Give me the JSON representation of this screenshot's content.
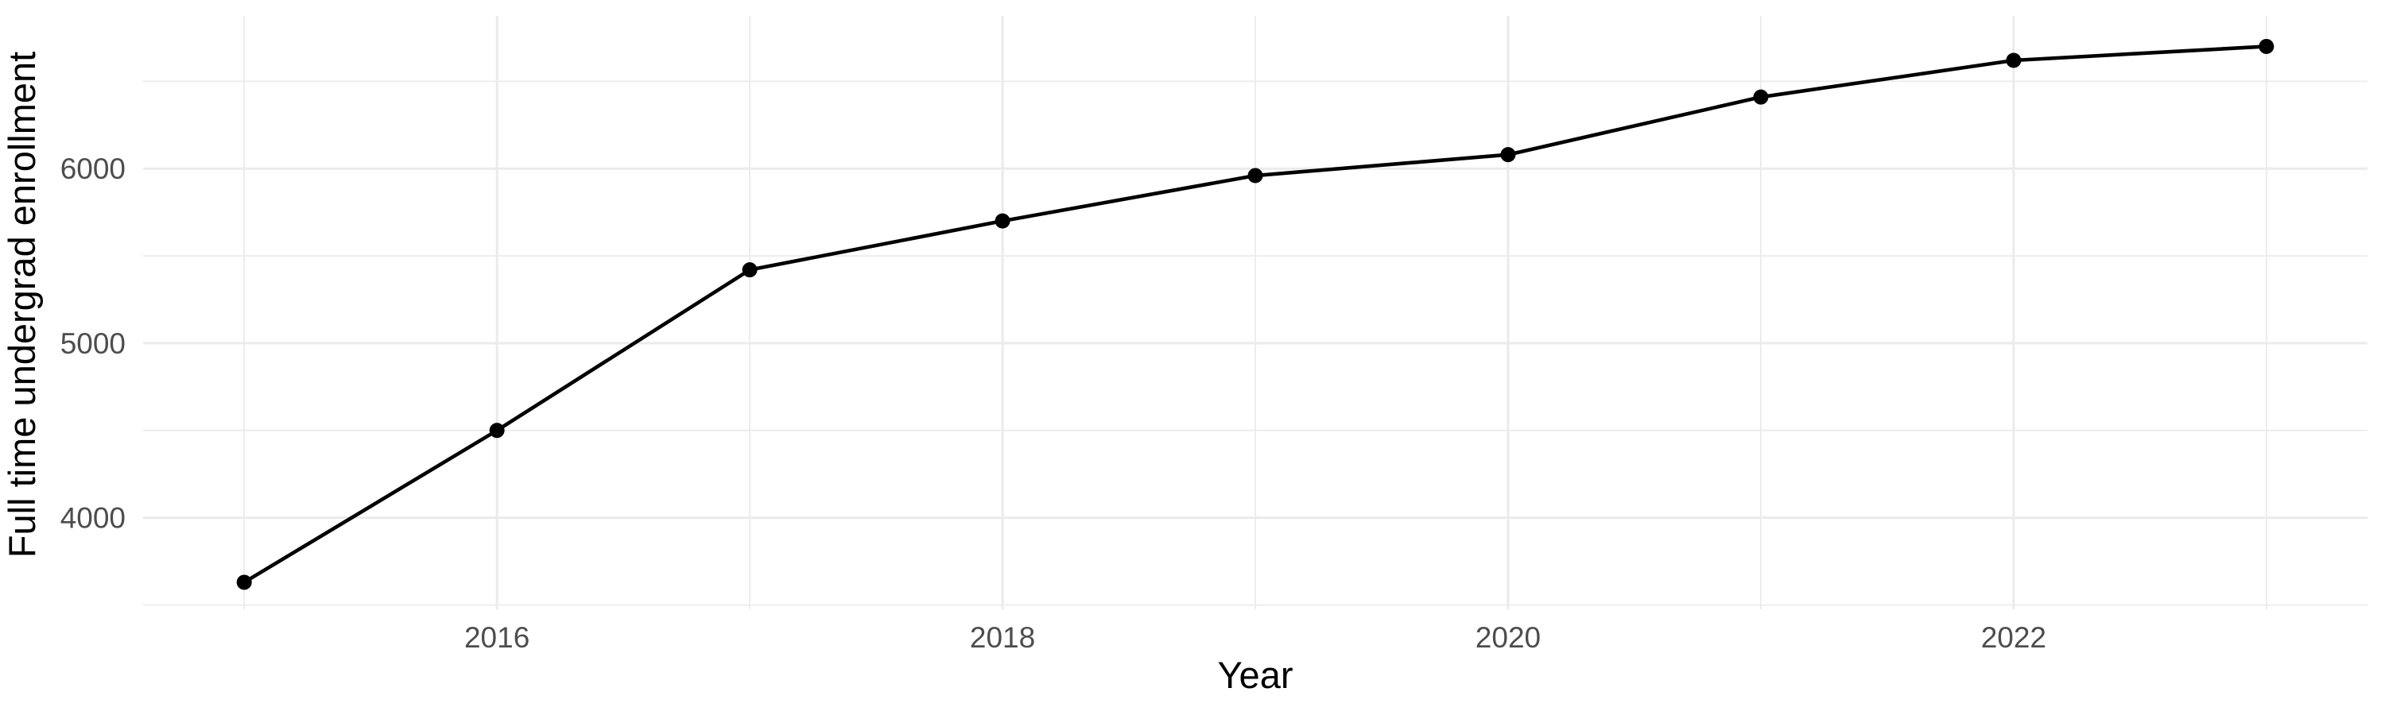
{
  "chart_data": {
    "type": "line",
    "title": "",
    "xlabel": "Year",
    "ylabel": "Full time undergrad enrollment",
    "series_name": "Full time undergrad enrollment",
    "x": [
      2015,
      2016,
      2017,
      2018,
      2019,
      2020,
      2021,
      2022,
      2023
    ],
    "values": [
      3630,
      4500,
      5420,
      5700,
      5960,
      6080,
      6410,
      6620,
      6700
    ],
    "xlim": [
      2014.6,
      2023.4
    ],
    "ylim": [
      3475,
      6875
    ],
    "x_major_ticks": [
      2016,
      2018,
      2020,
      2022
    ],
    "x_tick_labels": [
      "2016",
      "2018",
      "2020",
      "2022"
    ],
    "x_minor_gridlines": [
      2015,
      2017,
      2019,
      2021,
      2023
    ],
    "y_major_ticks": [
      4000,
      5000,
      6000
    ],
    "y_tick_labels": [
      "4000",
      "5000",
      "6000"
    ],
    "y_minor_gridlines": [
      3500,
      4500,
      5500,
      6500
    ],
    "grid": true,
    "legend": false,
    "marker": "point",
    "style": {
      "background_color": "#FFFFFF",
      "grid_color": "#EBEBEB",
      "line_color": "#000000",
      "point_color": "#000000",
      "tick_label_color": "#4D4D4D",
      "axis_title_color": "#000000"
    }
  }
}
